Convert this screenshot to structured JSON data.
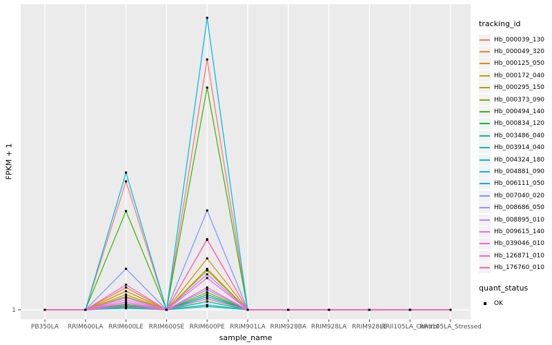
{
  "figure": {
    "background": "#FFFFFF",
    "panel_bg": "#EBEBEB",
    "grid_color": "#FFFFFF",
    "axis_text_color": "#4D4D4D",
    "tick_color": "#333333",
    "marker_color": "#000000"
  },
  "chart_data": {
    "type": "line",
    "title": "",
    "xlabel": "sample_name",
    "ylabel": "FPKM + 1",
    "ytick_labels": [
      "1"
    ],
    "value_units": "estimated % of panel height above the '1' baseline (only the tick '1' is labeled on screen)",
    "grid": "vertical major gridlines per category + horizontal gridline at y=1",
    "legend_position": "right",
    "categories": [
      "PB350LA",
      "RRIM600LA",
      "RRIM600LE",
      "RRIM600SE",
      "RRIM600PE",
      "RRIM901LA",
      "RRIM928BA",
      "RRIM928LA",
      "RRIM928LE",
      "RRII105LA_Control",
      "RRII105LA_Stressed"
    ],
    "marker": {
      "shape": "square",
      "color": "#000000",
      "meaning": "quant_status OK"
    },
    "legend": {
      "title": "tracking_id"
    },
    "quant_legend": {
      "title": "quant_status",
      "items": [
        {
          "label": "OK",
          "marker": "black-square"
        }
      ]
    },
    "series": [
      {
        "name": "Hb_000039_130",
        "color": "#F8766D",
        "values": [
          0,
          0,
          42.0,
          0,
          81.9,
          0,
          0,
          0,
          0,
          0,
          0
        ]
      },
      {
        "name": "Hb_000049_320",
        "color": "#EA8331",
        "values": [
          0,
          0,
          7.3,
          0,
          22.9,
          0,
          0,
          0,
          0,
          0,
          0
        ]
      },
      {
        "name": "Hb_000125_050",
        "color": "#D89000",
        "values": [
          0,
          0,
          6.1,
          0,
          16.8,
          0,
          0,
          0,
          0,
          0,
          0
        ]
      },
      {
        "name": "Hb_000172_040",
        "color": "#C09B00",
        "values": [
          0,
          0,
          5.0,
          0,
          13.4,
          0,
          0,
          0,
          0,
          0,
          0
        ]
      },
      {
        "name": "Hb_000295_150",
        "color": "#A3A500",
        "values": [
          0,
          0,
          4.3,
          0,
          12.9,
          0,
          0,
          0,
          0,
          0,
          0
        ]
      },
      {
        "name": "Hb_000373_090",
        "color": "#7CAE00",
        "values": [
          0,
          0,
          1.8,
          0,
          5.7,
          0,
          0,
          0,
          0,
          0,
          0
        ]
      },
      {
        "name": "Hb_000494_140",
        "color": "#39B600",
        "values": [
          0,
          0,
          32.3,
          0,
          72.7,
          0,
          0,
          0,
          0,
          0,
          0
        ]
      },
      {
        "name": "Hb_000834_120",
        "color": "#00BB4E",
        "values": [
          0,
          0,
          1.4,
          0,
          5.0,
          0,
          0,
          0,
          0,
          0,
          0
        ]
      },
      {
        "name": "Hb_003486_040",
        "color": "#00C087",
        "values": [
          0,
          0,
          0.9,
          0,
          2.7,
          0,
          0,
          0,
          0,
          0,
          0
        ]
      },
      {
        "name": "Hb_003914_040",
        "color": "#00C0B2",
        "values": [
          0,
          0,
          0.7,
          0,
          1.6,
          0,
          0,
          0,
          0,
          0,
          0
        ]
      },
      {
        "name": "Hb_004324_180",
        "color": "#00BCD8",
        "values": [
          0,
          0,
          0.5,
          0,
          1.1,
          0,
          0,
          0,
          0,
          0,
          0
        ]
      },
      {
        "name": "Hb_004881_090",
        "color": "#00B8E5",
        "values": [
          0,
          0,
          44.9,
          0,
          95.5,
          0,
          0,
          0,
          0,
          0,
          0
        ]
      },
      {
        "name": "Hb_006111_050",
        "color": "#00A6FF",
        "values": [
          0,
          0,
          1.1,
          0,
          4.3,
          0,
          0,
          0,
          0,
          0,
          0
        ]
      },
      {
        "name": "Hb_007040_020",
        "color": "#7C96FF",
        "values": [
          0,
          0,
          13.4,
          0,
          32.5,
          0,
          0,
          0,
          0,
          0,
          0
        ]
      },
      {
        "name": "Hb_008686_050",
        "color": "#A58AFF",
        "values": [
          0,
          0,
          2.0,
          0,
          6.6,
          0,
          0,
          0,
          0,
          0,
          0
        ]
      },
      {
        "name": "Hb_008895_010",
        "color": "#C77CFF",
        "values": [
          0,
          0,
          3.9,
          0,
          11.6,
          0,
          0,
          0,
          0,
          0,
          0
        ]
      },
      {
        "name": "Hb_009615_140",
        "color": "#E36EF6",
        "values": [
          0,
          0,
          3.2,
          0,
          10.4,
          0,
          0,
          0,
          0,
          0,
          0
        ]
      },
      {
        "name": "Hb_039046_010",
        "color": "#FA62DB",
        "values": [
          0,
          0,
          8.2,
          0,
          23.1,
          0,
          0,
          0,
          0,
          0,
          0
        ]
      },
      {
        "name": "Hb_126871_010",
        "color": "#FF61C2",
        "values": [
          0,
          0,
          2.5,
          0,
          7.3,
          0,
          0,
          0,
          0,
          0,
          0
        ]
      },
      {
        "name": "Hb_176760_010",
        "color": "#FF689E",
        "values": [
          0,
          0,
          1.1,
          0,
          3.6,
          0,
          0,
          0,
          0,
          0,
          0
        ]
      }
    ]
  }
}
